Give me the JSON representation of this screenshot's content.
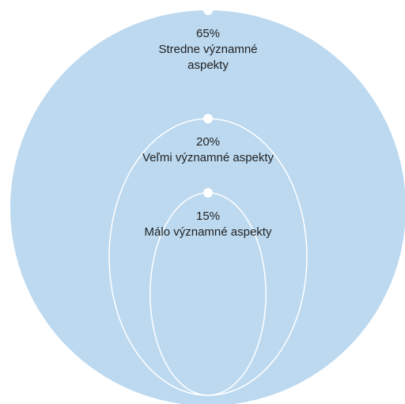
{
  "chart_data": {
    "type": "nested",
    "categories": [
      "Stredne významné aspekty",
      "Veľmi významné aspekty",
      "Málo významné aspekty"
    ],
    "values": [
      65,
      20,
      15
    ],
    "value_labels": [
      "65%",
      "20%",
      "15%"
    ],
    "color": "#bcd9f0",
    "outline": "#ffffff"
  }
}
